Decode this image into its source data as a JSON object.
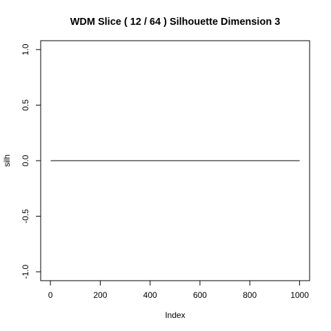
{
  "chart_data": {
    "type": "line",
    "title": "WDM Slice ( 12 / 64 )  Silhouette Dimension 3",
    "xlabel": "Index",
    "ylabel": "silh",
    "x_range": [
      1,
      1000
    ],
    "xlim": [
      -39,
      1040
    ],
    "ylim": [
      -1.08,
      1.08
    ],
    "x_ticks": [
      0,
      200,
      400,
      600,
      800,
      1000
    ],
    "x_tick_labels": [
      "0",
      "200",
      "400",
      "600",
      "800",
      "1000"
    ],
    "y_ticks": [
      -1.0,
      -0.5,
      0.0,
      0.5,
      1.0
    ],
    "y_tick_labels": [
      "-1.0",
      "-0.5",
      "0.0",
      "0.5",
      "1.0"
    ],
    "series": [
      {
        "x": [
          1,
          1000
        ],
        "y": [
          0,
          0
        ]
      }
    ],
    "grid": false,
    "colors": {
      "line": "#000000",
      "axis": "#000000",
      "background": "#ffffff"
    }
  }
}
